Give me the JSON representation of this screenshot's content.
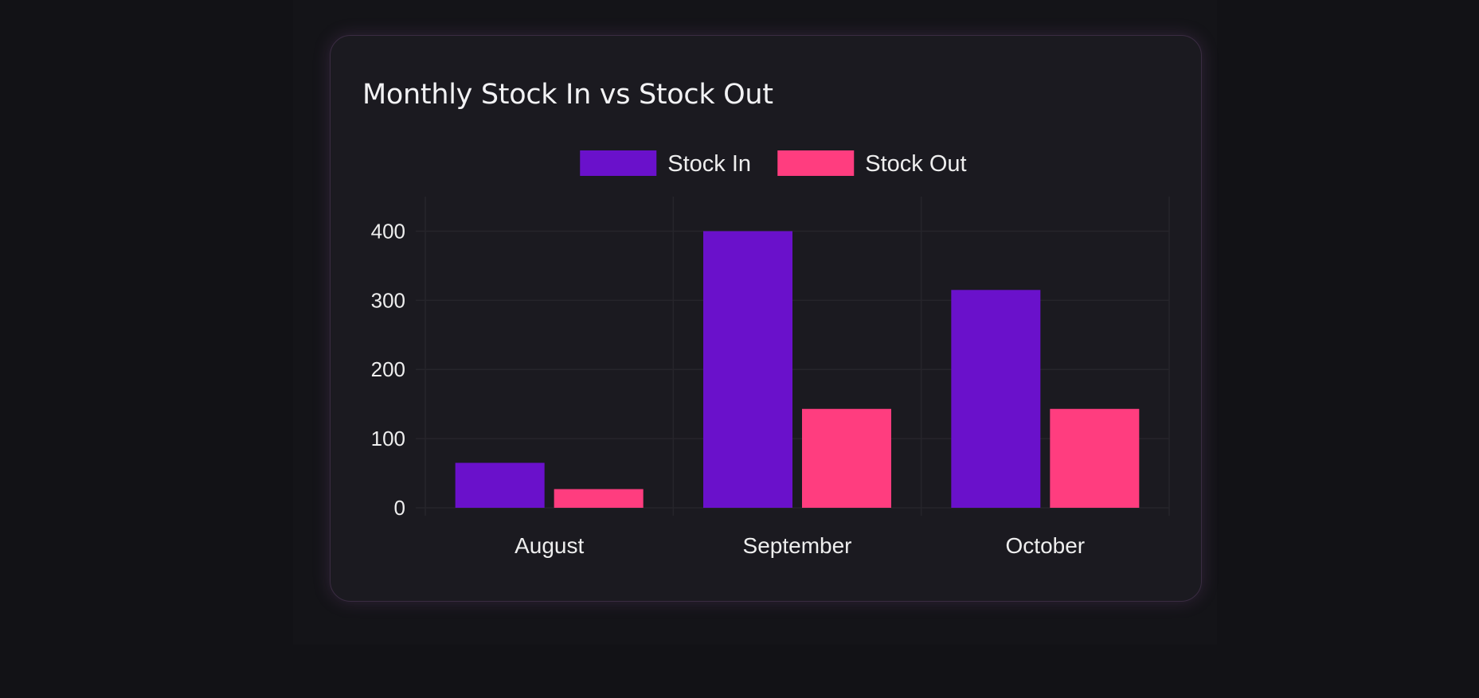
{
  "card": {
    "title": "Monthly Stock In vs Stock Out"
  },
  "chart_data": {
    "type": "bar",
    "title": "Monthly Stock In vs Stock Out",
    "categories": [
      "August",
      "September",
      "October"
    ],
    "series": [
      {
        "name": "Stock In",
        "values": [
          65,
          400,
          315
        ],
        "color": "#6a11cb"
      },
      {
        "name": "Stock Out",
        "values": [
          27,
          143,
          143
        ],
        "color": "#ff3d7f"
      }
    ],
    "yticks": [
      0,
      100,
      200,
      300,
      400
    ],
    "ylim": [
      0,
      450
    ],
    "xlabel": "",
    "ylabel": "",
    "grid": true,
    "legend": "top-center"
  }
}
